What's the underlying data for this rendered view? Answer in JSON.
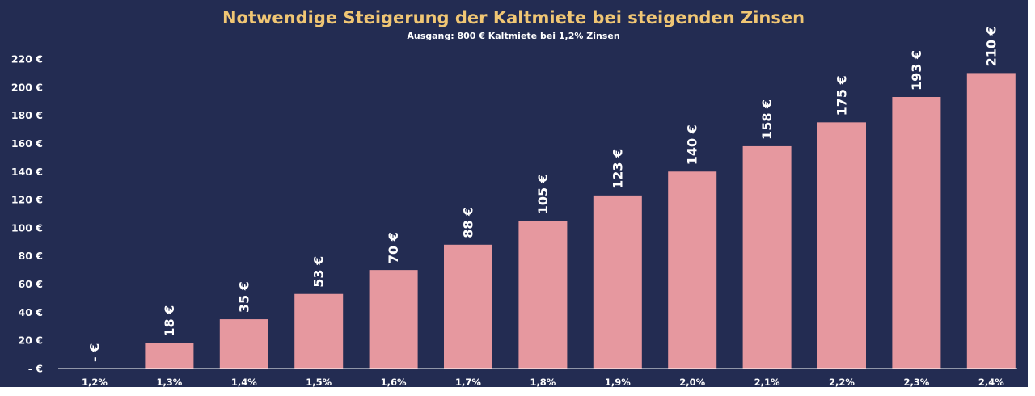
{
  "chart_data": {
    "type": "bar",
    "title": "Notwendige Steigerung der Kaltmiete bei steigenden Zinsen",
    "subtitle": "Ausgang: 800 € Kaltmiete bei 1,2% Zinsen",
    "categories": [
      "1,2%",
      "1,3%",
      "1,4%",
      "1,5%",
      "1,6%",
      "1,7%",
      "1,8%",
      "1,9%",
      "2,0%",
      "2,1%",
      "2,2%",
      "2,3%",
      "2,4%"
    ],
    "values": [
      0,
      18,
      35,
      53,
      70,
      88,
      105,
      123,
      140,
      158,
      175,
      193,
      210
    ],
    "data_labels": [
      "- €",
      "18 €",
      "35 €",
      "53 €",
      "70 €",
      "88 €",
      "105 €",
      "123 €",
      "140 €",
      "158 €",
      "175 €",
      "193 €",
      "210 €"
    ],
    "yticks": [
      0,
      20,
      40,
      60,
      80,
      100,
      120,
      140,
      160,
      180,
      200,
      220
    ],
    "ytick_labels": [
      "-  €",
      "20 €",
      "40 €",
      "60 €",
      "80 €",
      "100 €",
      "120 €",
      "140 €",
      "160 €",
      "180 €",
      "200 €",
      "220 €"
    ],
    "ylim": [
      0,
      220
    ],
    "grid": false,
    "legend": "none",
    "colors": {
      "background": "#232c52",
      "bar": "#e6989f",
      "title": "#f0c674",
      "text": "#ffffff",
      "axis": "#ffffff"
    }
  }
}
